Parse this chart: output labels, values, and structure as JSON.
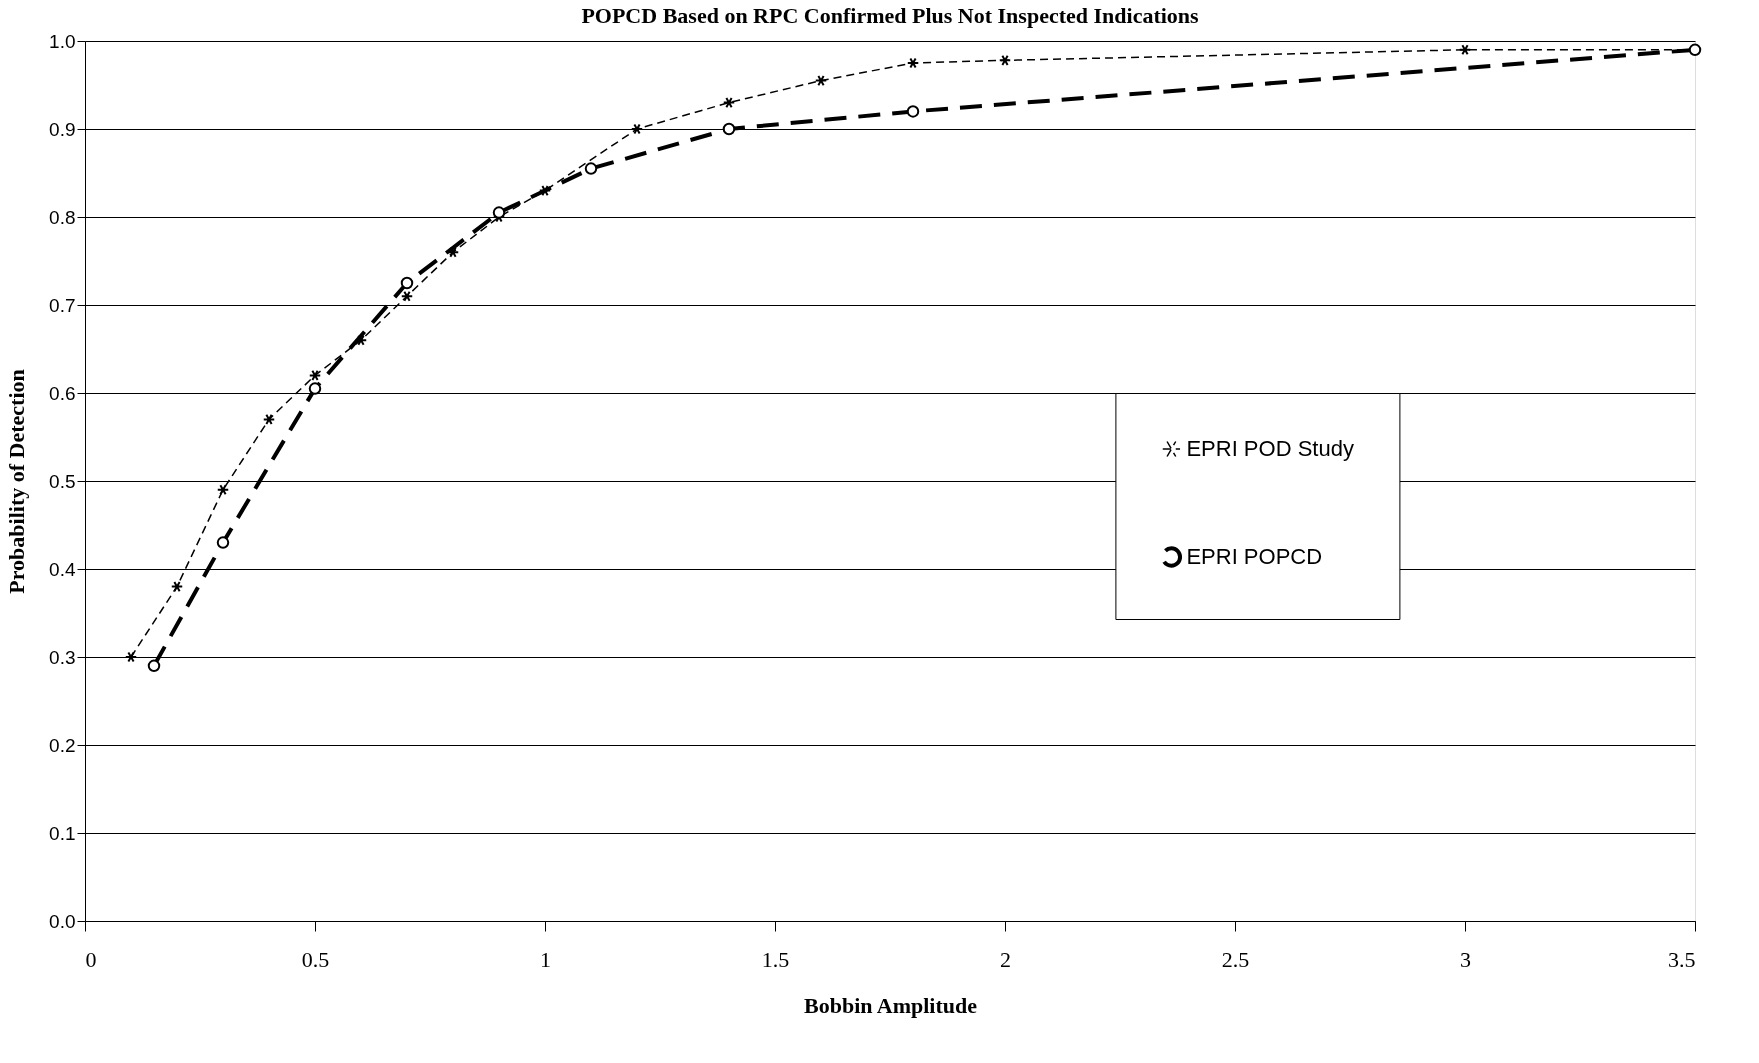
{
  "chart_data": {
    "type": "line",
    "title": "POPCD Based on RPC Confirmed Plus Not Inspected Indications",
    "xlabel": "Bobbin Amplitude",
    "ylabel": "Probability of Detection",
    "xlim": [
      0,
      3.5
    ],
    "xticks": [
      0,
      0.5,
      1,
      1.5,
      2,
      2.5,
      3,
      3.5
    ],
    "ylim": [
      0,
      1
    ],
    "yticks": [
      {
        "value": 0,
        "label": "0.0"
      },
      0.1,
      0.2,
      0.3,
      0.4,
      0.5,
      0.6,
      0.7,
      0.8,
      0.9,
      {
        "value": 1,
        "label": "1.0"
      }
    ],
    "grid": "y",
    "legend": "right",
    "line_style": "dashed",
    "series": [
      {
        "name": "EPRI POD Study",
        "color": "#000000",
        "marker": "cross",
        "x": [
          0.1,
          0.2,
          0.3,
          0.4,
          0.5,
          0.6,
          0.7,
          0.8,
          0.9,
          1.0,
          1.2,
          1.4,
          1.6,
          1.8,
          2.0,
          3.0,
          3.5
        ],
        "values": [
          0.3,
          0.38,
          0.49,
          0.57,
          0.62,
          0.66,
          0.71,
          0.76,
          0.8,
          0.83,
          0.9,
          0.93,
          0.955,
          0.975,
          0.978,
          0.99,
          0.99
        ]
      },
      {
        "name": "EPRI POPCD",
        "color": "#000000",
        "marker": "circle",
        "x": [
          0.15,
          0.3,
          0.5,
          0.7,
          0.9,
          1.1,
          1.4,
          1.8,
          3.5
        ],
        "values": [
          0.29,
          0.43,
          0.605,
          0.725,
          0.805,
          0.855,
          0.9,
          0.92,
          0.99
        ]
      }
    ]
  }
}
